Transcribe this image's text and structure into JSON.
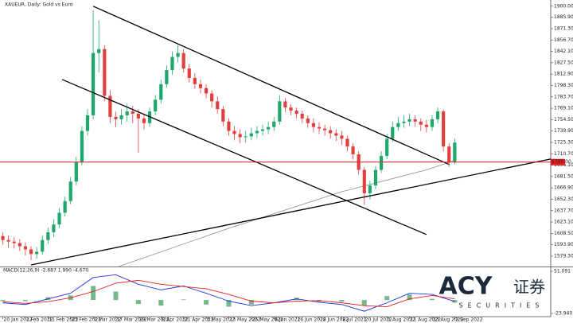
{
  "chart_data": {
    "type": "candlestick",
    "title": "XAUEUR, Daily: Gold vs Euro",
    "up_color": "#1ea86b",
    "down_color": "#e04040",
    "x": [
      0,
      2,
      4,
      6,
      8,
      10,
      12,
      14,
      16,
      18,
      20,
      22,
      24,
      26,
      28,
      30,
      32,
      34,
      36,
      38,
      40,
      42,
      44,
      46,
      48,
      50,
      52,
      54,
      56,
      58,
      60,
      62,
      64,
      66,
      68,
      70,
      72,
      74,
      76,
      78,
      80,
      82,
      84,
      86,
      88,
      90,
      92,
      94,
      96,
      98,
      100,
      102,
      104,
      106,
      108,
      110,
      112,
      114,
      116,
      118,
      120,
      122,
      124,
      126,
      128,
      130,
      132,
      134,
      136,
      138,
      140,
      142,
      144,
      146,
      148,
      150,
      152,
      154,
      156,
      158,
      160
    ],
    "open": [
      1605,
      1600,
      1598,
      1596,
      1592,
      1588,
      1582,
      1585,
      1600,
      1610,
      1620,
      1635,
      1650,
      1675,
      1700,
      1740,
      1760,
      1840,
      1845,
      1785,
      1758,
      1755,
      1760,
      1765,
      1762,
      1756,
      1750,
      1765,
      1780,
      1800,
      1818,
      1835,
      1840,
      1820,
      1808,
      1800,
      1795,
      1788,
      1778,
      1768,
      1752,
      1740,
      1736,
      1732,
      1733,
      1737,
      1740,
      1742,
      1745,
      1752,
      1778,
      1770,
      1766,
      1762,
      1756,
      1750,
      1745,
      1743,
      1741,
      1737,
      1734,
      1730,
      1720,
      1710,
      1690,
      1660,
      1670,
      1690,
      1708,
      1730,
      1745,
      1750,
      1752,
      1755,
      1752,
      1748,
      1745,
      1755,
      1765,
      1720,
      1700
    ],
    "high": [
      1610,
      1606,
      1604,
      1601,
      1597,
      1592,
      1591,
      1606,
      1616,
      1627,
      1641,
      1656,
      1681,
      1707,
      1746,
      1768,
      1895,
      1882,
      1850,
      1792,
      1765,
      1768,
      1775,
      1772,
      1768,
      1762,
      1770,
      1786,
      1806,
      1824,
      1842,
      1850,
      1845,
      1826,
      1814,
      1806,
      1800,
      1792,
      1784,
      1772,
      1756,
      1746,
      1742,
      1740,
      1744,
      1746,
      1748,
      1752,
      1758,
      1786,
      1782,
      1774,
      1770,
      1766,
      1760,
      1756,
      1751,
      1748,
      1746,
      1742,
      1740,
      1734,
      1724,
      1714,
      1694,
      1676,
      1695,
      1714,
      1736,
      1752,
      1758,
      1760,
      1762,
      1760,
      1756,
      1754,
      1760,
      1770,
      1768,
      1724,
      1730
    ],
    "low": [
      1594,
      1590,
      1589,
      1586,
      1580,
      1574,
      1576,
      1581,
      1595,
      1604,
      1615,
      1630,
      1646,
      1670,
      1696,
      1734,
      1755,
      1815,
      1778,
      1750,
      1745,
      1748,
      1752,
      1750,
      1712,
      1742,
      1745,
      1760,
      1775,
      1795,
      1812,
      1828,
      1815,
      1802,
      1794,
      1788,
      1782,
      1770,
      1762,
      1746,
      1734,
      1728,
      1724,
      1725,
      1728,
      1731,
      1734,
      1736,
      1740,
      1748,
      1764,
      1760,
      1756,
      1750,
      1744,
      1738,
      1736,
      1734,
      1730,
      1727,
      1722,
      1714,
      1703,
      1684,
      1645,
      1652,
      1665,
      1686,
      1704,
      1726,
      1740,
      1744,
      1746,
      1745,
      1740,
      1738,
      1740,
      1750,
      1714,
      1694,
      1697
    ],
    "close": [
      1600,
      1598,
      1596,
      1592,
      1588,
      1582,
      1585,
      1600,
      1610,
      1620,
      1635,
      1650,
      1675,
      1700,
      1740,
      1760,
      1840,
      1845,
      1785,
      1758,
      1755,
      1760,
      1765,
      1762,
      1756,
      1750,
      1765,
      1780,
      1800,
      1818,
      1835,
      1840,
      1820,
      1808,
      1800,
      1795,
      1788,
      1778,
      1768,
      1752,
      1740,
      1736,
      1732,
      1733,
      1737,
      1740,
      1742,
      1745,
      1752,
      1778,
      1770,
      1766,
      1762,
      1756,
      1750,
      1745,
      1743,
      1741,
      1737,
      1734,
      1730,
      1720,
      1710,
      1690,
      1660,
      1670,
      1690,
      1708,
      1730,
      1745,
      1750,
      1752,
      1755,
      1752,
      1748,
      1745,
      1755,
      1765,
      1720,
      1700,
      1725
    ],
    "xlim": [
      -1,
      194
    ],
    "xticks": [
      {
        "value": 0,
        "label": "20 Jan 2022"
      },
      {
        "value": 8,
        "label": "1 Feb 2022"
      },
      {
        "value": 16,
        "label": "11 Feb 2022"
      },
      {
        "value": 24,
        "label": "23 Feb 2022"
      },
      {
        "value": 32,
        "label": "7 Mar 2022"
      },
      {
        "value": 40,
        "label": "17 Mar 2022"
      },
      {
        "value": 48,
        "label": "29 Mar 2022"
      },
      {
        "value": 56,
        "label": "8 Apr 2022"
      },
      {
        "value": 64,
        "label": "21 Apr 2022"
      },
      {
        "value": 72,
        "label": "3 May 2022"
      },
      {
        "value": 80,
        "label": "13 May 2022"
      },
      {
        "value": 88,
        "label": "25 May 2022"
      },
      {
        "value": 96,
        "label": "6 Jun 2022"
      },
      {
        "value": 104,
        "label": "16 Jun 2022"
      },
      {
        "value": 112,
        "label": "28 Jun 2022"
      },
      {
        "value": 120,
        "label": "8 Jul 2022"
      },
      {
        "value": 128,
        "label": "20 Jul 2022"
      },
      {
        "value": 136,
        "label": "1 Aug 2022"
      },
      {
        "value": 144,
        "label": "11 Aug 2022"
      },
      {
        "value": 152,
        "label": "23 Aug 2022"
      },
      {
        "value": 160,
        "label": "2 Sep 2022"
      }
    ],
    "ylim": [
      1566,
      1908
    ],
    "yticks": [
      {
        "value": 1579.3,
        "label": "1579.30"
      },
      {
        "value": 1593.9,
        "label": "1593.90"
      },
      {
        "value": 1608.5,
        "label": "1608.50"
      },
      {
        "value": 1623.1,
        "label": "1623.10"
      },
      {
        "value": 1637.7,
        "label": "1637.70"
      },
      {
        "value": 1652.3,
        "label": "1652.30"
      },
      {
        "value": 1666.9,
        "label": "1666.90"
      },
      {
        "value": 1681.5,
        "label": "1681.50"
      },
      {
        "value": 1696.1,
        "label": "1696.10"
      },
      {
        "value": 1710.7,
        "label": "1710.70"
      },
      {
        "value": 1725.3,
        "label": "1725.30"
      },
      {
        "value": 1739.9,
        "label": "1739.90"
      },
      {
        "value": 1754.5,
        "label": "1754.50"
      },
      {
        "value": 1769.1,
        "label": "1769.10"
      },
      {
        "value": 1783.7,
        "label": "1783.70"
      },
      {
        "value": 1798.3,
        "label": "1798.30"
      },
      {
        "value": 1812.9,
        "label": "1812.90"
      },
      {
        "value": 1827.5,
        "label": "1827.50"
      },
      {
        "value": 1842.1,
        "label": "1842.10"
      },
      {
        "value": 1856.7,
        "label": "1856.70"
      },
      {
        "value": 1871.3,
        "label": "1871.30"
      },
      {
        "value": 1885.9,
        "label": "1885.90"
      },
      {
        "value": 1900,
        "label": "1900.00"
      }
    ],
    "hline": {
      "value": 1700,
      "label": "1700.00",
      "color": "#e02020"
    },
    "trendlines": [
      {
        "x": [
          32,
          158
        ],
        "values": [
          1900,
          1697
        ],
        "color": "#000000"
      },
      {
        "x": [
          21,
          150
        ],
        "values": [
          1806,
          1607
        ],
        "color": "#000000"
      },
      {
        "x": [
          10,
          194
        ],
        "values": [
          1568,
          1704
        ],
        "color": "#000000"
      }
    ],
    "moving_average": {
      "x": [
        41,
        80,
        120,
        150,
        160
      ],
      "values": [
        1566,
        1615,
        1662,
        1690,
        1702
      ],
      "color": "#8c8c8c"
    },
    "macd": {
      "label": "MACD(12,26,9) -2.687 1.990 -4.670",
      "x": [
        0,
        8,
        16,
        24,
        32,
        40,
        48,
        56,
        64,
        72,
        80,
        88,
        96,
        104,
        112,
        120,
        128,
        136,
        144,
        152,
        160
      ],
      "macd": [
        -5,
        -8,
        2,
        12,
        40,
        45,
        28,
        18,
        25,
        12,
        -2,
        -10,
        -5,
        2,
        -4,
        -8,
        -20,
        -5,
        12,
        10,
        -2.687
      ],
      "signal": [
        -3,
        -6,
        -3,
        4,
        15,
        30,
        35,
        28,
        24,
        20,
        10,
        -2,
        -5,
        -2,
        -1,
        -5,
        -10,
        -12,
        2,
        8,
        1.99
      ],
      "histogram": [
        -2,
        -2,
        5,
        8,
        25,
        15,
        -7,
        -10,
        1,
        -8,
        -12,
        -8,
        0,
        4,
        -3,
        -3,
        -10,
        7,
        10,
        2,
        -4.67
      ],
      "macd_color": "#2030e0",
      "signal_color": "#e02020",
      "hist_color": "#3a9a5a",
      "y2lim": [
        -23.94,
        51.091
      ],
      "y2ticks": [
        {
          "value": -23.94,
          "label": "-23.940"
        },
        51.091
      ]
    }
  },
  "logo": {
    "brand": "ACY",
    "chinese": "证券",
    "sub": "SECURITIES"
  }
}
